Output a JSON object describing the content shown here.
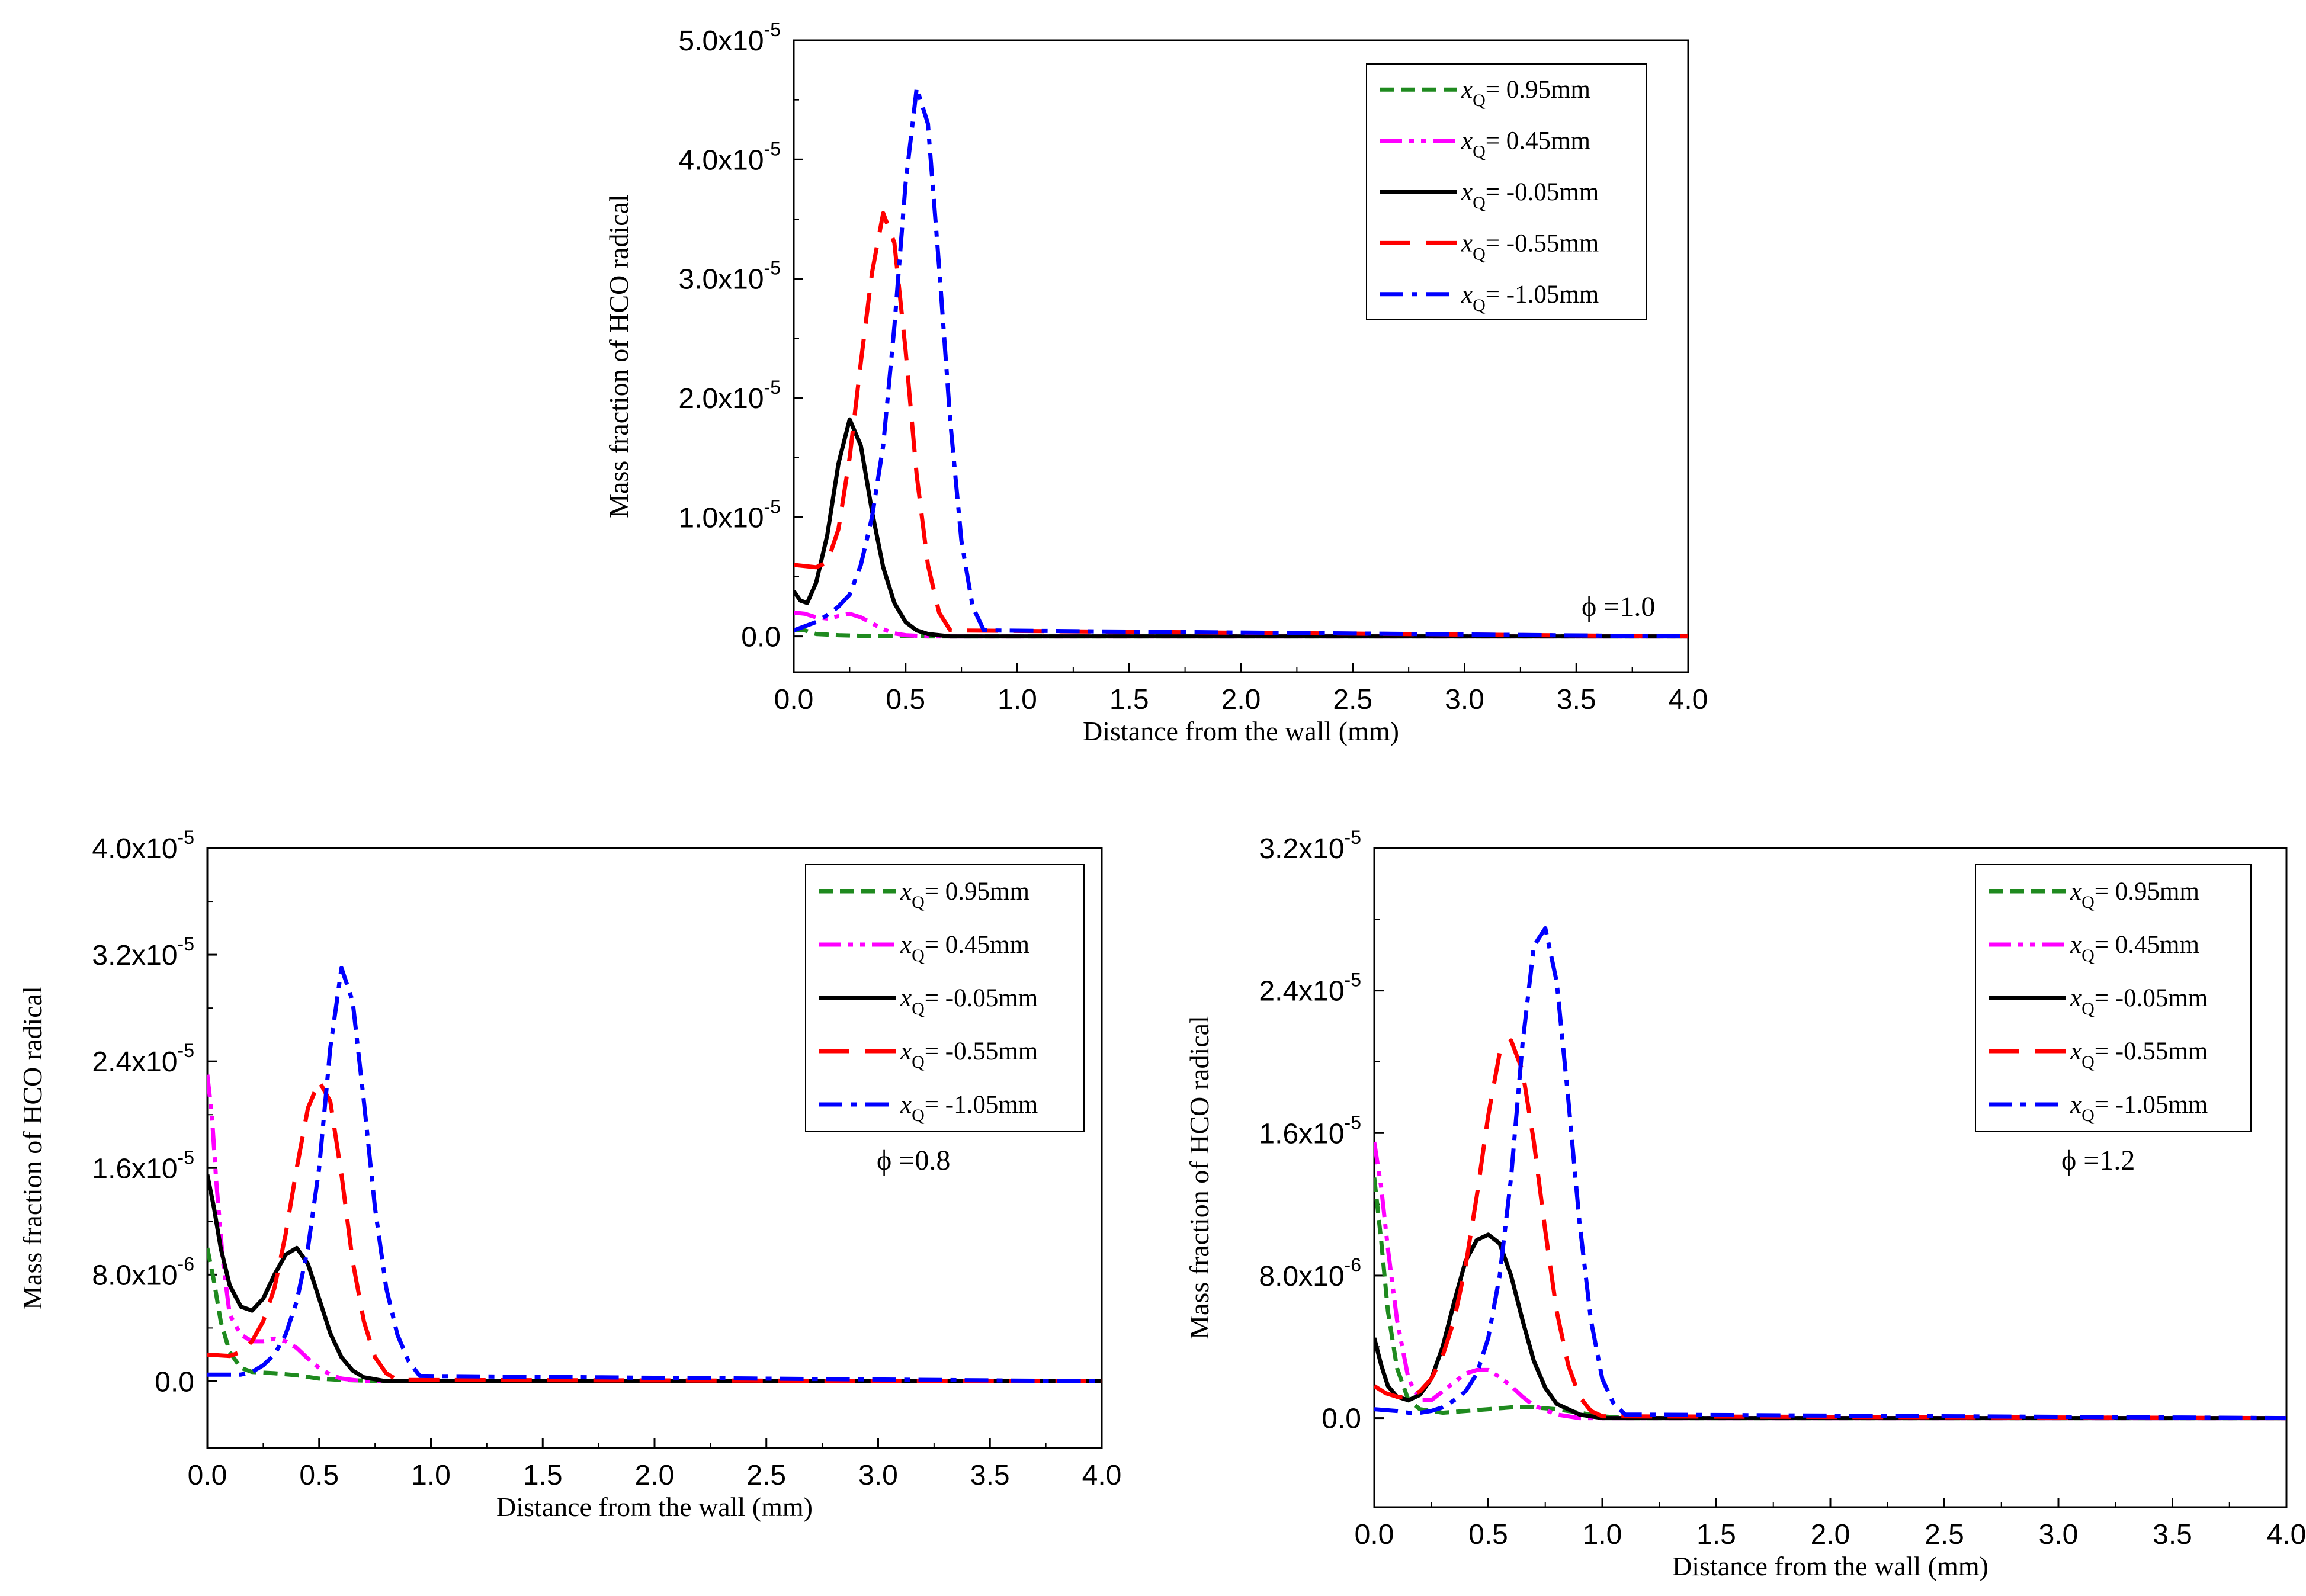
{
  "chart_data": [
    {
      "id": "phi10",
      "type": "line",
      "annotation": "ϕ =1.0",
      "xlabel": "Distance from the wall (mm)",
      "ylabel": "Mass fraction of HCO radical",
      "xlim": [
        0,
        4.0
      ],
      "ylim": [
        -3e-06,
        5e-05
      ],
      "xticks": [
        0,
        0.5,
        1.0,
        1.5,
        2.0,
        2.5,
        3.0,
        3.5,
        4.0
      ],
      "xtick_labels": [
        "0.0",
        "0.5",
        "1.0",
        "1.5",
        "2.0",
        "2.5",
        "3.0",
        "3.5",
        "4.0"
      ],
      "yticks": [
        0,
        1e-05,
        2e-05,
        3e-05,
        4e-05,
        5e-05
      ],
      "ytick_labels": [
        {
          "mant": "0.0",
          "exp": ""
        },
        {
          "mant": "1.0x10",
          "exp": "-5"
        },
        {
          "mant": "2.0x10",
          "exp": "-5"
        },
        {
          "mant": "3.0x10",
          "exp": "-5"
        },
        {
          "mant": "4.0x10",
          "exp": "-5"
        },
        {
          "mant": "5.0x10",
          "exp": "-5"
        }
      ],
      "series": [
        {
          "key": "xq095",
          "prefix": "x",
          "sub": "Q",
          "suffix": "= 0.95mm",
          "color": "#1f8a1f",
          "dash": "short-dash",
          "x": [
            0,
            0.05,
            0.1,
            0.2,
            0.3,
            0.4,
            0.5,
            0.6,
            0.8,
            4.0
          ],
          "y": [
            5e-07,
            5e-07,
            2e-07,
            1e-07,
            5e-08,
            2e-08,
            1e-08,
            0,
            0,
            0
          ]
        },
        {
          "key": "xq045",
          "prefix": "x",
          "sub": "Q",
          "suffix": "= 0.45mm",
          "color": "#ff00ff",
          "dash": "dash-dot-dot",
          "x": [
            0,
            0.05,
            0.1,
            0.15,
            0.2,
            0.25,
            0.3,
            0.35,
            0.4,
            0.45,
            0.5,
            0.6,
            4.0
          ],
          "y": [
            2e-06,
            1.9e-06,
            1.6e-06,
            1.5e-06,
            1.7e-06,
            1.9e-06,
            1.6e-06,
            1.1e-06,
            6e-07,
            2.5e-07,
            1e-07,
            0,
            0
          ]
        },
        {
          "key": "xqm005",
          "prefix": "x",
          "sub": "Q",
          "suffix": "= -0.05mm",
          "color": "#000000",
          "dash": "solid",
          "x": [
            0,
            0.03,
            0.06,
            0.1,
            0.15,
            0.2,
            0.25,
            0.3,
            0.35,
            0.4,
            0.45,
            0.5,
            0.55,
            0.6,
            0.7,
            4.0
          ],
          "y": [
            3.8e-06,
            3e-06,
            2.8e-06,
            4.5e-06,
            8.5e-06,
            1.45e-05,
            1.82e-05,
            1.6e-05,
            1.05e-05,
            5.8e-06,
            2.8e-06,
            1.2e-06,
            5e-07,
            2e-07,
            0,
            0
          ]
        },
        {
          "key": "xqm055",
          "prefix": "x",
          "sub": "Q",
          "suffix": "= -0.55mm",
          "color": "#ff0000",
          "dash": "long-dash",
          "x": [
            0,
            0.1,
            0.15,
            0.2,
            0.25,
            0.3,
            0.35,
            0.4,
            0.45,
            0.5,
            0.55,
            0.6,
            0.65,
            0.7,
            4.0
          ],
          "y": [
            6e-06,
            5.8e-06,
            6.2e-06,
            9e-06,
            1.5e-05,
            2.3e-05,
            3.05e-05,
            3.55e-05,
            3.3e-05,
            2.4e-05,
            1.35e-05,
            6e-06,
            2e-06,
            5e-07,
            0
          ]
        },
        {
          "key": "xqm105",
          "prefix": "x",
          "sub": "Q",
          "suffix": "= -1.05mm",
          "color": "#0000ff",
          "dash": "dash-dot",
          "x": [
            0,
            0.1,
            0.15,
            0.2,
            0.25,
            0.3,
            0.35,
            0.4,
            0.45,
            0.5,
            0.55,
            0.6,
            0.65,
            0.7,
            0.75,
            0.8,
            0.85,
            4.0
          ],
          "y": [
            5e-07,
            1.2e-06,
            1.8e-06,
            2.5e-06,
            3.5e-06,
            6e-06,
            1e-05,
            1.6e-05,
            2.6e-05,
            3.8e-05,
            4.6e-05,
            4.3e-05,
            3.1e-05,
            1.8e-05,
            8e-06,
            2.5e-06,
            5e-07,
            0
          ]
        }
      ]
    },
    {
      "id": "phi08",
      "type": "line",
      "annotation": "ϕ =0.8",
      "xlabel": "Distance from the wall (mm)",
      "ylabel": "Mass fraction of HCO radical",
      "xlim": [
        0,
        4.0
      ],
      "ylim": [
        -5e-06,
        4e-05
      ],
      "xticks": [
        0,
        0.5,
        1.0,
        1.5,
        2.0,
        2.5,
        3.0,
        3.5,
        4.0
      ],
      "xtick_labels": [
        "0.0",
        "0.5",
        "1.0",
        "1.5",
        "2.0",
        "2.5",
        "3.0",
        "3.5",
        "4.0"
      ],
      "yticks": [
        0,
        8e-06,
        1.6e-05,
        2.4e-05,
        3.2e-05,
        4e-05
      ],
      "ytick_labels": [
        {
          "mant": "0.0",
          "exp": ""
        },
        {
          "mant": "8.0x10",
          "exp": "-6"
        },
        {
          "mant": "1.6x10",
          "exp": "-5"
        },
        {
          "mant": "2.4x10",
          "exp": "-5"
        },
        {
          "mant": "3.2x10",
          "exp": "-5"
        },
        {
          "mant": "4.0x10",
          "exp": "-5"
        }
      ],
      "series": [
        {
          "key": "xq095",
          "prefix": "x",
          "sub": "Q",
          "suffix": "= 0.95mm",
          "color": "#1f8a1f",
          "dash": "short-dash",
          "x": [
            0,
            0.03,
            0.06,
            0.1,
            0.15,
            0.2,
            0.3,
            0.4,
            0.5,
            0.6,
            0.7,
            0.8,
            4.0
          ],
          "y": [
            1e-05,
            7.5e-06,
            4.5e-06,
            2.2e-06,
            1e-06,
            7e-07,
            6e-07,
            4.5e-07,
            2e-07,
            1e-07,
            5e-08,
            0,
            0
          ]
        },
        {
          "key": "xq045",
          "prefix": "x",
          "sub": "Q",
          "suffix": "= 0.45mm",
          "color": "#ff00ff",
          "dash": "dash-dot-dot",
          "x": [
            0,
            0.02,
            0.04,
            0.07,
            0.1,
            0.15,
            0.2,
            0.25,
            0.3,
            0.35,
            0.4,
            0.45,
            0.5,
            0.55,
            0.6,
            0.7,
            4.0
          ],
          "y": [
            2.3e-05,
            2e-05,
            1.5e-05,
            9e-06,
            5e-06,
            3.5e-06,
            3e-06,
            3e-06,
            3.2e-06,
            3e-06,
            2.5e-06,
            1.7e-06,
            1e-06,
            5e-07,
            2e-07,
            0,
            0
          ]
        },
        {
          "key": "xqm005",
          "prefix": "x",
          "sub": "Q",
          "suffix": "= -0.05mm",
          "color": "#000000",
          "dash": "solid",
          "x": [
            0,
            0.03,
            0.06,
            0.1,
            0.15,
            0.2,
            0.25,
            0.3,
            0.35,
            0.4,
            0.45,
            0.5,
            0.55,
            0.6,
            0.65,
            0.7,
            0.8,
            4.0
          ],
          "y": [
            1.55e-05,
            1.3e-05,
            1e-05,
            7.2e-06,
            5.6e-06,
            5.3e-06,
            6.2e-06,
            8e-06,
            9.5e-06,
            1e-05,
            8.8e-06,
            6.2e-06,
            3.6e-06,
            1.8e-06,
            8e-07,
            3e-07,
            0,
            0
          ]
        },
        {
          "key": "xqm055",
          "prefix": "x",
          "sub": "Q",
          "suffix": "= -0.55mm",
          "color": "#ff0000",
          "dash": "long-dash",
          "x": [
            0,
            0.1,
            0.15,
            0.2,
            0.25,
            0.3,
            0.35,
            0.4,
            0.45,
            0.5,
            0.55,
            0.6,
            0.65,
            0.7,
            0.75,
            0.8,
            0.85,
            4.0
          ],
          "y": [
            2e-06,
            1.9e-06,
            2.2e-06,
            3e-06,
            4.5e-06,
            7e-06,
            1.1e-05,
            1.6e-05,
            2.05e-05,
            2.25e-05,
            2.1e-05,
            1.55e-05,
            9e-06,
            4.5e-06,
            1.8e-06,
            6e-07,
            1e-07,
            0
          ]
        },
        {
          "key": "xqm105",
          "prefix": "x",
          "sub": "Q",
          "suffix": "= -1.05mm",
          "color": "#0000ff",
          "dash": "dash-dot",
          "x": [
            0,
            0.15,
            0.2,
            0.25,
            0.3,
            0.35,
            0.4,
            0.45,
            0.5,
            0.55,
            0.6,
            0.65,
            0.7,
            0.75,
            0.8,
            0.85,
            0.9,
            0.95,
            4.0
          ],
          "y": [
            5e-07,
            5e-07,
            7e-07,
            1.2e-06,
            2e-06,
            3.5e-06,
            6e-06,
            1e-05,
            1.6e-05,
            2.5e-05,
            3.1e-05,
            2.85e-05,
            2.1e-05,
            1.3e-05,
            7e-06,
            3.5e-06,
            1.5e-06,
            4e-07,
            0
          ]
        }
      ]
    },
    {
      "id": "phi12",
      "type": "line",
      "annotation": "ϕ =1.2",
      "xlabel": "Distance from the wall (mm)",
      "ylabel": "Mass fraction of HCO radical",
      "xlim": [
        0,
        4.0
      ],
      "ylim": [
        -5e-06,
        3.2e-05
      ],
      "xticks": [
        0,
        0.5,
        1.0,
        1.5,
        2.0,
        2.5,
        3.0,
        3.5,
        4.0
      ],
      "xtick_labels": [
        "0.0",
        "0.5",
        "1.0",
        "1.5",
        "2.0",
        "2.5",
        "3.0",
        "3.5",
        "4.0"
      ],
      "yticks": [
        0,
        8e-06,
        1.6e-05,
        2.4e-05,
        3.2e-05
      ],
      "ytick_labels": [
        {
          "mant": "0.0",
          "exp": ""
        },
        {
          "mant": "8.0x10",
          "exp": "-6"
        },
        {
          "mant": "1.6x10",
          "exp": "-5"
        },
        {
          "mant": "2.4x10",
          "exp": "-5"
        },
        {
          "mant": "3.2x10",
          "exp": "-5"
        }
      ],
      "series": [
        {
          "key": "xq095",
          "prefix": "x",
          "sub": "Q",
          "suffix": "= 0.95mm",
          "color": "#1f8a1f",
          "dash": "short-dash",
          "x": [
            0,
            0.03,
            0.06,
            0.1,
            0.15,
            0.2,
            0.3,
            0.4,
            0.5,
            0.6,
            0.7,
            0.8,
            0.9,
            1.0,
            1.1,
            4.0
          ],
          "y": [
            1.35e-05,
            1e-05,
            6e-06,
            2.8e-06,
            1e-06,
            5e-07,
            3e-07,
            4e-07,
            5e-07,
            6e-07,
            6e-07,
            5e-07,
            3e-07,
            1e-07,
            0,
            0
          ]
        },
        {
          "key": "xq045",
          "prefix": "x",
          "sub": "Q",
          "suffix": "= 0.45mm",
          "color": "#ff00ff",
          "dash": "dash-dot-dot",
          "x": [
            0,
            0.03,
            0.06,
            0.1,
            0.15,
            0.2,
            0.25,
            0.3,
            0.35,
            0.4,
            0.45,
            0.5,
            0.55,
            0.6,
            0.65,
            0.7,
            0.8,
            0.9,
            4.0
          ],
          "y": [
            1.55e-05,
            1.3e-05,
            9.5e-06,
            5.5e-06,
            2.2e-06,
            1e-06,
            1e-06,
            1.5e-06,
            2e-06,
            2.5e-06,
            2.7e-06,
            2.7e-06,
            2.3e-06,
            1.8e-06,
            1.2e-06,
            7e-07,
            2e-07,
            0,
            0
          ]
        },
        {
          "key": "xqm005",
          "prefix": "x",
          "sub": "Q",
          "suffix": "= -0.05mm",
          "color": "#000000",
          "dash": "solid",
          "x": [
            0,
            0.03,
            0.06,
            0.1,
            0.15,
            0.2,
            0.25,
            0.3,
            0.35,
            0.4,
            0.45,
            0.5,
            0.55,
            0.6,
            0.65,
            0.7,
            0.75,
            0.8,
            0.9,
            1.0,
            4.0
          ],
          "y": [
            4.5e-06,
            3e-06,
            1.8e-06,
            1.2e-06,
            1e-06,
            1.3e-06,
            2.2e-06,
            4e-06,
            6.5e-06,
            8.8e-06,
            1e-05,
            1.03e-05,
            9.8e-06,
            8e-06,
            5.5e-06,
            3.2e-06,
            1.7e-06,
            8e-07,
            2e-07,
            0,
            0
          ]
        },
        {
          "key": "xqm055",
          "prefix": "x",
          "sub": "Q",
          "suffix": "= -0.55mm",
          "color": "#ff0000",
          "dash": "long-dash",
          "x": [
            0,
            0.05,
            0.1,
            0.15,
            0.2,
            0.25,
            0.3,
            0.35,
            0.4,
            0.45,
            0.5,
            0.55,
            0.6,
            0.65,
            0.7,
            0.75,
            0.8,
            0.85,
            0.9,
            0.95,
            1.0,
            4.0
          ],
          "y": [
            1.8e-06,
            1.4e-06,
            1.2e-06,
            1.2e-06,
            1.5e-06,
            2.2e-06,
            3.5e-06,
            5.5e-06,
            8.5e-06,
            1.25e-05,
            1.7e-05,
            2.05e-05,
            2.12e-05,
            1.95e-05,
            1.55e-05,
            1.05e-05,
            6e-06,
            3e-06,
            1.2e-06,
            4e-07,
            1e-07,
            0
          ]
        },
        {
          "key": "xqm105",
          "prefix": "x",
          "sub": "Q",
          "suffix": "= -1.05mm",
          "color": "#0000ff",
          "dash": "dash-dot",
          "x": [
            0,
            0.1,
            0.15,
            0.2,
            0.25,
            0.3,
            0.35,
            0.4,
            0.45,
            0.5,
            0.55,
            0.6,
            0.65,
            0.7,
            0.75,
            0.8,
            0.85,
            0.9,
            0.95,
            1.0,
            1.05,
            1.1,
            4.0
          ],
          "y": [
            5e-07,
            4e-07,
            3e-07,
            3e-07,
            4e-07,
            6e-07,
            1e-06,
            1.5e-06,
            2.5e-06,
            4.5e-06,
            8e-06,
            1.35e-05,
            2.1e-05,
            2.65e-05,
            2.75e-05,
            2.45e-05,
            1.8e-05,
            1.1e-05,
            5.5e-06,
            2.2e-06,
            8e-07,
            2e-07,
            0
          ]
        }
      ]
    }
  ]
}
